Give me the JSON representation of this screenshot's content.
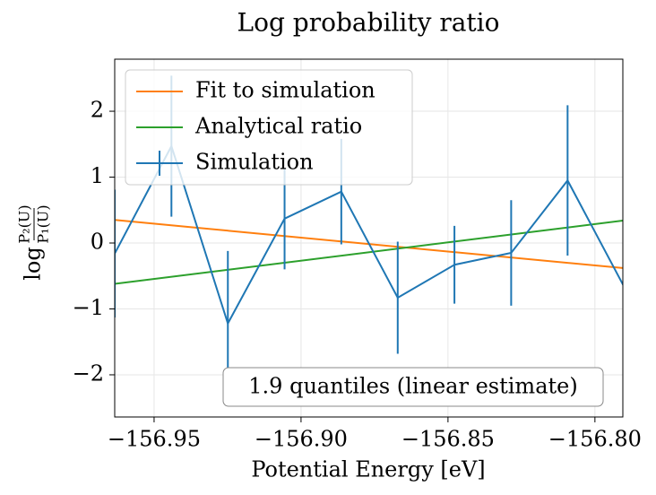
{
  "chart_data": {
    "type": "line",
    "title": "Log probability ratio",
    "xlabel": "Potential Energy [eV]",
    "ylabel": {
      "prefix": "log",
      "numerator": "P₂(U)",
      "denominator": "P₁(U)"
    },
    "annotation": "1.9 quantiles (linear estimate)",
    "xlim": [
      -156.9634,
      -156.7905
    ],
    "ylim": [
      -2.64,
      2.79
    ],
    "xticks": [
      {
        "value": -156.95,
        "label": "−156.95"
      },
      {
        "value": -156.9,
        "label": "−156.90"
      },
      {
        "value": -156.85,
        "label": "−156.85"
      },
      {
        "value": -156.8,
        "label": "−156.80"
      }
    ],
    "yticks": [
      {
        "value": -2,
        "label": "−2"
      },
      {
        "value": -1,
        "label": "−1"
      },
      0,
      1,
      2
    ],
    "grid": true,
    "legend": "upper left",
    "series": [
      {
        "name": "Fit to simulation",
        "color": "#ff7f0e",
        "x": [
          -156.9634,
          -156.7905
        ],
        "values": [
          0.35,
          -0.38
        ]
      },
      {
        "name": "Analytical ratio",
        "color": "#2ca02c",
        "x": [
          -156.9634,
          -156.7905
        ],
        "values": [
          -0.62,
          0.34
        ]
      },
      {
        "name": "Simulation",
        "color": "#1f77b4",
        "x": [
          -156.9634,
          -156.9441,
          -156.9249,
          -156.9056,
          -156.8863,
          -156.8671,
          -156.8478,
          -156.8285,
          -156.8093,
          -156.79
        ],
        "values": [
          -0.16,
          1.47,
          -1.22,
          0.37,
          0.78,
          -0.83,
          -0.33,
          -0.15,
          0.95,
          -0.67
        ],
        "errors": [
          0.97,
          1.07,
          1.1,
          0.77,
          0.8,
          0.85,
          0.59,
          0.8,
          1.14,
          0.7
        ]
      }
    ]
  }
}
